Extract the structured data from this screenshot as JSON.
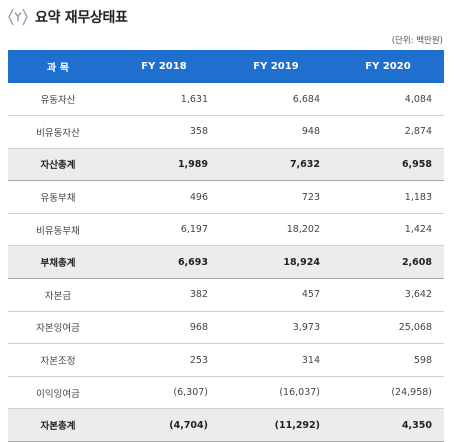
{
  "header": {
    "title": "요약 재무상태표",
    "unit": "(단위: 백만원)"
  },
  "table": {
    "columns": [
      "과 목",
      "FY 2018",
      "FY 2019",
      "FY 2020"
    ],
    "rows": [
      {
        "label": "유동자산",
        "total": false,
        "values": [
          "1,631",
          "6,684",
          "4,084"
        ]
      },
      {
        "label": "비유동자산",
        "total": false,
        "values": [
          "358",
          "948",
          "2,874"
        ]
      },
      {
        "label": "자산총계",
        "total": true,
        "values": [
          "1,989",
          "7,632",
          "6,958"
        ]
      },
      {
        "label": "유동부채",
        "total": false,
        "values": [
          "496",
          "723",
          "1,183"
        ]
      },
      {
        "label": "비유동부채",
        "total": false,
        "values": [
          "6,197",
          "18,202",
          "1,424"
        ]
      },
      {
        "label": "부채총계",
        "total": true,
        "values": [
          "6,693",
          "18,924",
          "2,608"
        ]
      },
      {
        "label": "자본금",
        "total": false,
        "values": [
          "382",
          "457",
          "3,642"
        ]
      },
      {
        "label": "자본잉여금",
        "total": false,
        "values": [
          "968",
          "3,973",
          "25,068"
        ]
      },
      {
        "label": "자본조정",
        "total": false,
        "values": [
          "253",
          "314",
          "598"
        ]
      },
      {
        "label": "이익잉여금",
        "total": false,
        "values": [
          "(6,307)",
          "(16,037)",
          "(24,958)"
        ]
      },
      {
        "label": "자본총계",
        "total": true,
        "values": [
          "(4,704)",
          "(11,292)",
          "4,350"
        ]
      }
    ]
  },
  "colors": {
    "header_bg": "#1f6fcf",
    "total_row_bg": "#ececec",
    "icon_color": "#8a9bb0"
  },
  "icons": {
    "title_icon": "hexagon-y-icon"
  }
}
